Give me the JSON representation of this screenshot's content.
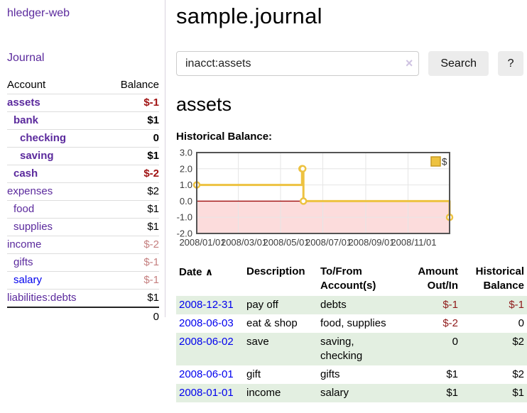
{
  "app": {
    "name": "hledger-web"
  },
  "sidebar": {
    "journal_link": "Journal",
    "accounts_table": {
      "account_header": "Account",
      "balance_header": "Balance",
      "rows": [
        {
          "name": "assets",
          "level": 0,
          "balance": "$-1",
          "in_filter": true,
          "balance_tone": "neg",
          "link_tone": "visited"
        },
        {
          "name": "bank",
          "level": 1,
          "balance": "$1",
          "in_filter": true,
          "balance_tone": "normal",
          "link_tone": "visited"
        },
        {
          "name": "checking",
          "level": 2,
          "balance": "0",
          "in_filter": true,
          "balance_tone": "normal",
          "link_tone": "visited"
        },
        {
          "name": "saving",
          "level": 2,
          "balance": "$1",
          "in_filter": true,
          "balance_tone": "normal",
          "link_tone": "visited"
        },
        {
          "name": "cash",
          "level": 1,
          "balance": "$-2",
          "in_filter": true,
          "balance_tone": "neg",
          "link_tone": "visited"
        },
        {
          "name": "expenses",
          "level": 0,
          "balance": "$2",
          "in_filter": false,
          "balance_tone": "normal",
          "link_tone": "visited"
        },
        {
          "name": "food",
          "level": 1,
          "balance": "$1",
          "in_filter": false,
          "balance_tone": "normal",
          "link_tone": "visited"
        },
        {
          "name": "supplies",
          "level": 1,
          "balance": "$1",
          "in_filter": false,
          "balance_tone": "normal",
          "link_tone": "visited"
        },
        {
          "name": "income",
          "level": 0,
          "balance": "$-2",
          "in_filter": false,
          "balance_tone": "neg-dim",
          "link_tone": "visited"
        },
        {
          "name": "gifts",
          "level": 1,
          "balance": "$-1",
          "in_filter": false,
          "balance_tone": "neg-dim",
          "link_tone": "visited"
        },
        {
          "name": "salary",
          "level": 1,
          "balance": "$-1",
          "in_filter": false,
          "balance_tone": "neg-dim",
          "link_tone": "unvisited"
        },
        {
          "name": "liabilities:debts",
          "level": 0,
          "balance": "$1",
          "in_filter": false,
          "balance_tone": "normal",
          "link_tone": "visited"
        }
      ],
      "total": "0"
    }
  },
  "header": {
    "title": "sample.journal"
  },
  "search": {
    "value": "inacct:assets",
    "clear_icon": "×",
    "search_button": "Search",
    "help_button": "?"
  },
  "account_page": {
    "heading": "assets",
    "chart_label": "Historical Balance:"
  },
  "chart_data": {
    "type": "line",
    "title": "Historical Balance",
    "step": true,
    "series": [
      {
        "name": "$",
        "color": "#edc240",
        "points": [
          [
            "2008-01-01",
            1
          ],
          [
            "2008-06-01",
            2
          ],
          [
            "2008-06-02",
            2
          ],
          [
            "2008-06-03",
            0
          ],
          [
            "2008-12-31",
            -1
          ]
        ]
      }
    ],
    "x_ticks": [
      "2008/01/01",
      "2008/03/01",
      "2008/05/01",
      "2008/07/01",
      "2008/09/01",
      "2008/11/01"
    ],
    "x_range": [
      "2008-01-01",
      "2008-12-31"
    ],
    "y_ticks": [
      3.0,
      2.0,
      1.0,
      0.0,
      -1.0,
      -2.0
    ],
    "ylim": [
      -2,
      3
    ],
    "grid": true,
    "legend": {
      "label": "$",
      "position": "top-right"
    },
    "colors": {
      "line": "#edc240",
      "negative_region": "#fcdcdc",
      "zero_line": "#9e0b0b",
      "gridline": "#e6e6e6",
      "border": "#545454"
    }
  },
  "register_table": {
    "headers": {
      "date": "Date",
      "sort_icon": "∧",
      "description": "Description",
      "tofrom": "To/From\nAccount(s)",
      "amount": "Amount\nOut/In",
      "balance": "Historical\nBalance"
    },
    "rows": [
      {
        "date": "2008-12-31",
        "description": "pay off",
        "accounts": "debts",
        "amount": "$-1",
        "amount_negative": true,
        "balance": "$-1",
        "balance_negative": true,
        "stripe": true
      },
      {
        "date": "2008-06-03",
        "description": "eat & shop",
        "accounts": "food, supplies",
        "amount": "$-2",
        "amount_negative": true,
        "balance": "0",
        "balance_negative": false,
        "stripe": false
      },
      {
        "date": "2008-06-02",
        "description": "save",
        "accounts": "saving, checking",
        "amount": "0",
        "amount_negative": false,
        "balance": "$2",
        "balance_negative": false,
        "stripe": true
      },
      {
        "date": "2008-06-01",
        "description": "gift",
        "accounts": "gifts",
        "amount": "$1",
        "amount_negative": false,
        "balance": "$2",
        "balance_negative": false,
        "stripe": false
      },
      {
        "date": "2008-01-01",
        "description": "income",
        "accounts": "salary",
        "amount": "$1",
        "amount_negative": false,
        "balance": "$1",
        "balance_negative": false,
        "stripe": true
      }
    ]
  },
  "colors": {
    "link_purple": "#5b2a9d",
    "link_blue": "#0000ee",
    "negative_strong": "#a01313",
    "negative_dim": "#c57f7f",
    "row_stripe_green": "#e3efe1",
    "button_gray": "#ececec"
  }
}
